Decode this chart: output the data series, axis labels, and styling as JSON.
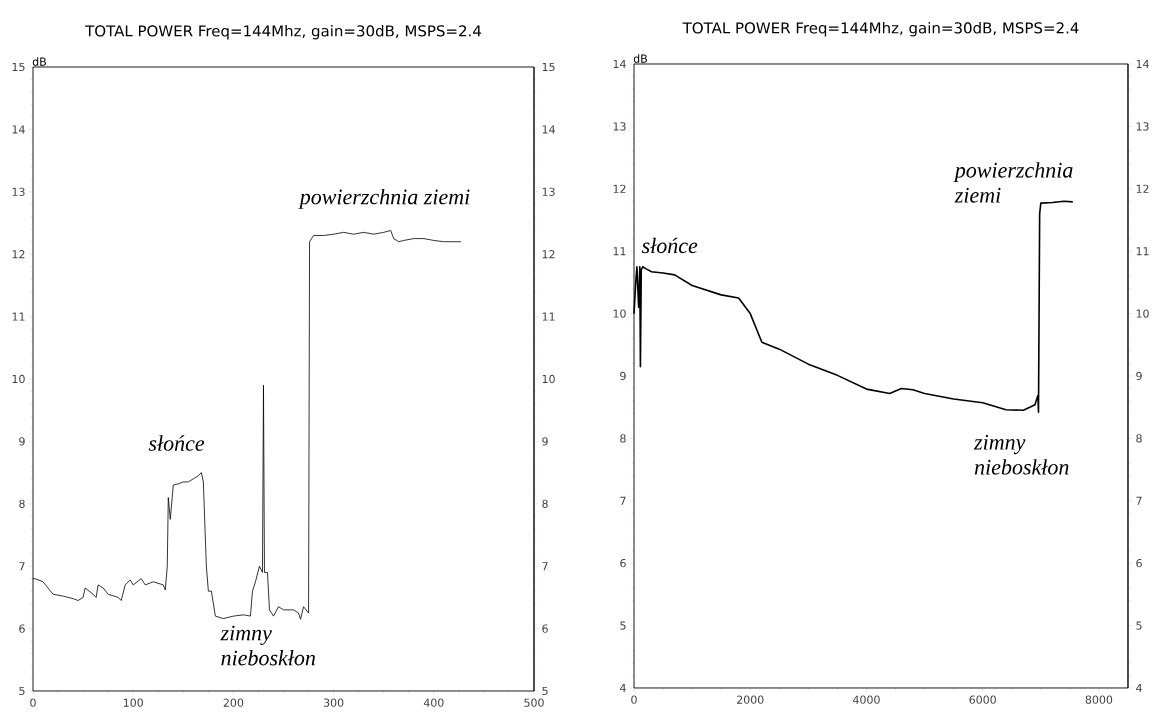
{
  "chart_data": [
    {
      "type": "line",
      "title": "TOTAL POWER  Freq=144Mhz,  gain=30dB, MSPS=2.4",
      "ylabel": "dB",
      "color": "#000000",
      "marker": "none",
      "x": [
        0,
        2,
        10,
        15,
        20,
        30,
        40,
        45,
        50,
        52,
        60,
        63,
        65,
        70,
        75,
        85,
        88,
        92,
        97,
        100,
        108,
        112,
        120,
        130,
        132,
        134,
        135,
        137,
        140,
        145,
        150,
        155,
        160,
        165,
        168,
        170,
        173,
        175,
        178,
        182,
        190,
        200,
        210,
        217,
        219,
        222,
        226,
        229,
        230,
        231,
        234,
        236,
        240,
        245,
        250,
        255,
        260,
        265,
        267,
        270,
        275,
        276,
        280,
        290,
        300,
        310,
        320,
        330,
        340,
        350,
        357,
        360,
        365,
        370,
        380,
        390,
        400,
        410,
        420,
        427
      ],
      "values": [
        6.8,
        6.8,
        6.75,
        6.65,
        6.55,
        6.52,
        6.48,
        6.45,
        6.5,
        6.65,
        6.55,
        6.5,
        6.7,
        6.65,
        6.55,
        6.5,
        6.45,
        6.7,
        6.78,
        6.7,
        6.8,
        6.7,
        6.75,
        6.7,
        6.62,
        7.0,
        8.1,
        7.75,
        8.3,
        8.32,
        8.35,
        8.35,
        8.4,
        8.45,
        8.5,
        8.35,
        7.0,
        6.6,
        6.6,
        6.2,
        6.16,
        6.2,
        6.22,
        6.2,
        6.6,
        6.75,
        7.0,
        6.9,
        9.9,
        6.9,
        6.9,
        6.3,
        6.2,
        6.35,
        6.3,
        6.3,
        6.3,
        6.25,
        6.15,
        6.35,
        6.25,
        12.2,
        12.3,
        12.3,
        12.32,
        12.35,
        12.32,
        12.35,
        12.32,
        12.35,
        12.38,
        12.25,
        12.2,
        12.22,
        12.25,
        12.25,
        12.22,
        12.2,
        12.2,
        12.2
      ],
      "xlim": [
        0,
        500
      ],
      "xticks": [
        0,
        100,
        200,
        300,
        400,
        500
      ],
      "ylim": [
        5,
        15
      ],
      "yticks": [
        5,
        6,
        7,
        8,
        9,
        10,
        11,
        12,
        13,
        14,
        15
      ],
      "y2lim": [
        5,
        15
      ],
      "y2ticks": [
        5,
        6,
        7,
        8,
        9,
        10,
        11,
        12,
        13,
        14,
        15
      ],
      "annotations": [
        "słońce",
        "zimny nieboskłon",
        "powierzchnia ziemi"
      ]
    },
    {
      "type": "line",
      "title": "TOTAL POWER  Freq=144Mhz,  gain=30dB, MSPS=2.4",
      "ylabel": "dB",
      "color": "#000000",
      "marker": "none",
      "x": [
        0,
        30,
        50,
        80,
        100,
        110,
        125,
        150,
        200,
        300,
        500,
        700,
        1000,
        1500,
        1800,
        2000,
        2200,
        2500,
        3000,
        3500,
        4000,
        4400,
        4600,
        4800,
        5000,
        5500,
        6000,
        6400,
        6700,
        6900,
        6950,
        6960,
        6980,
        7000,
        7200,
        7400,
        7550
      ],
      "values": [
        10.0,
        10.5,
        10.75,
        10.1,
        10.75,
        9.15,
        10.7,
        10.75,
        10.72,
        10.67,
        10.65,
        10.62,
        10.45,
        10.3,
        10.25,
        10.0,
        9.54,
        9.43,
        9.19,
        9.01,
        8.79,
        8.72,
        8.8,
        8.78,
        8.72,
        8.63,
        8.57,
        8.46,
        8.45,
        8.54,
        8.69,
        8.42,
        11.6,
        11.77,
        11.78,
        11.8,
        11.79
      ],
      "xlim": [
        0,
        8500
      ],
      "xticks": [
        0,
        2000,
        4000,
        6000,
        8000
      ],
      "ylim": [
        4,
        14
      ],
      "yticks": [
        4,
        5,
        6,
        7,
        8,
        9,
        10,
        11,
        12,
        13,
        14
      ],
      "y2lim": [
        4,
        14
      ],
      "y2ticks": [
        4,
        5,
        6,
        7,
        8,
        9,
        10,
        11,
        12,
        13,
        14
      ],
      "annotations": [
        "słońce",
        "powierzchnia ziemi",
        "zimny nieboskłon"
      ]
    }
  ]
}
